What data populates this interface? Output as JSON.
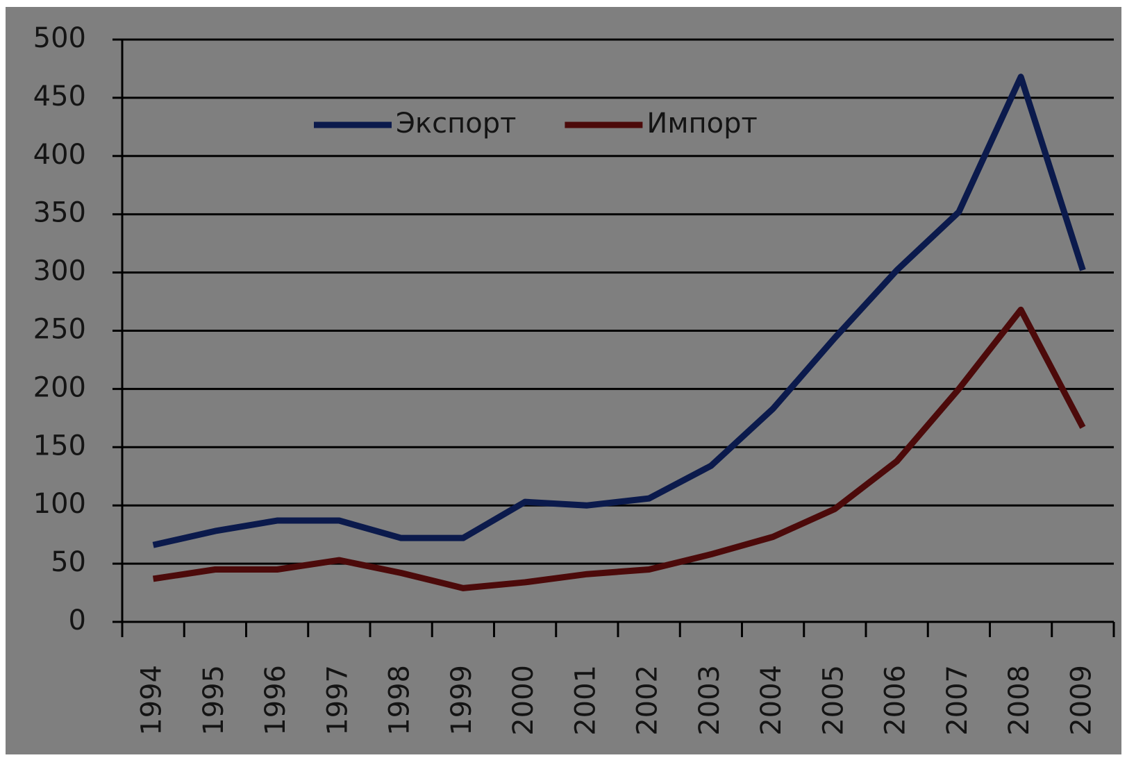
{
  "chart_data": {
    "type": "line",
    "categories": [
      "1994",
      "1995",
      "1996",
      "1997",
      "1998",
      "1999",
      "2000",
      "2001",
      "2002",
      "2003",
      "2004",
      "2005",
      "2006",
      "2007",
      "2008",
      "2009"
    ],
    "series": [
      {
        "name": "Экспорт",
        "color": "#0b1a4c",
        "values": [
          66,
          78,
          87,
          87,
          72,
          72,
          103,
          100,
          106,
          134,
          183,
          244,
          302,
          352,
          468,
          302
        ]
      },
      {
        "name": "Импорт",
        "color": "#4c0a0a",
        "values": [
          37,
          45,
          45,
          53,
          42,
          29,
          34,
          41,
          45,
          58,
          73,
          97,
          138,
          200,
          268,
          167
        ]
      }
    ],
    "ylim": [
      0,
      500
    ],
    "yticks": [
      0,
      50,
      100,
      150,
      200,
      250,
      300,
      350,
      400,
      450,
      500
    ],
    "grid": true,
    "legend": "upper-center"
  }
}
